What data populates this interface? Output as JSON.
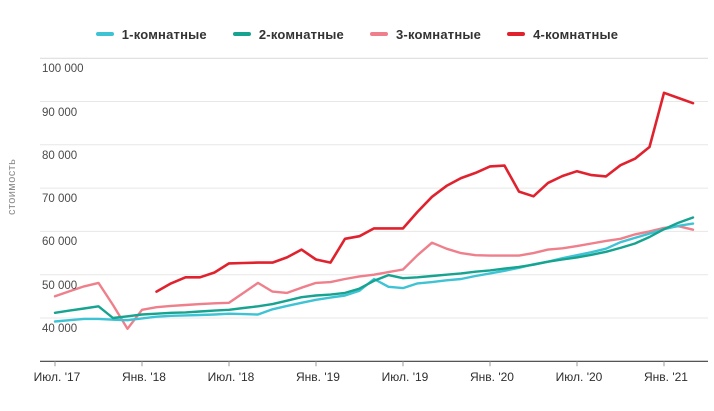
{
  "chart_data": {
    "type": "line",
    "title": "",
    "ylabel": "стоимость",
    "grid": true,
    "legend_position": "top",
    "ylim": [
      30000,
      100000
    ],
    "y_ticks": [
      {
        "label": "100 000",
        "value": 100000
      },
      {
        "label": "90 000",
        "value": 90000
      },
      {
        "label": "80 000",
        "value": 80000
      },
      {
        "label": "70 000",
        "value": 70000
      },
      {
        "label": "60 000",
        "value": 60000
      },
      {
        "label": "50 000",
        "value": 50000
      },
      {
        "label": "40 000",
        "value": 40000
      }
    ],
    "x_ticks": [
      {
        "label": "Июл. '17",
        "month_index": 0
      },
      {
        "label": "Янв. '18",
        "month_index": 6
      },
      {
        "label": "Июл. '18",
        "month_index": 12
      },
      {
        "label": "Янв. '19",
        "month_index": 18
      },
      {
        "label": "Июл. '19",
        "month_index": 24
      },
      {
        "label": "Янв. '20",
        "month_index": 30
      },
      {
        "label": "Июл. '20",
        "month_index": 36
      },
      {
        "label": "Янв. '21",
        "month_index": 42
      }
    ],
    "x": [
      "Июл. '17",
      "Авг. '17",
      "Сен. '17",
      "Окт. '17",
      "Ноя. '17",
      "Дек. '17",
      "Янв. '18",
      "Фев. '18",
      "Мар. '18",
      "Апр. '18",
      "Май '18",
      "Июн. '18",
      "Июл. '18",
      "Авг. '18",
      "Сен. '18",
      "Окт. '18",
      "Ноя. '18",
      "Дек. '18",
      "Янв. '19",
      "Фев. '19",
      "Мар. '19",
      "Апр. '19",
      "Май '19",
      "Июн. '19",
      "Июл. '19",
      "Авг. '19",
      "Сен. '19",
      "Окт. '19",
      "Ноя. '19",
      "Дек. '19",
      "Янв. '20",
      "Фев. '20",
      "Мар. '20",
      "Апр. '20",
      "Май '20",
      "Июн. '20",
      "Июл. '20",
      "Авг. '20",
      "Сен. '20",
      "Окт. '20",
      "Ноя. '20",
      "Дек. '20",
      "Янв. '21",
      "Фев. '21",
      "Мар. '21"
    ],
    "series": [
      {
        "name": "1-комнатные",
        "color": "#3ec3d5",
        "values": [
          39200,
          39500,
          39800,
          39800,
          39600,
          39500,
          39900,
          40300,
          40500,
          40600,
          40700,
          40800,
          41000,
          40900,
          40800,
          42000,
          42800,
          43500,
          44200,
          44700,
          45200,
          46300,
          49000,
          47200,
          46900,
          48000,
          48300,
          48700,
          49000,
          49700,
          50300,
          50900,
          51600,
          52400,
          53000,
          53800,
          54500,
          55200,
          56000,
          57500,
          58500,
          59500,
          60500,
          61300,
          61800
        ]
      },
      {
        "name": "2-комнатные",
        "color": "#16a38f",
        "values": [
          41200,
          41700,
          42200,
          42700,
          40000,
          40400,
          40800,
          41000,
          41200,
          41300,
          41500,
          41700,
          41900,
          42300,
          42700,
          43200,
          44000,
          44800,
          45200,
          45400,
          45800,
          46800,
          48600,
          49900,
          49200,
          49400,
          49700,
          50000,
          50300,
          50700,
          51000,
          51400,
          51800,
          52300,
          53000,
          53500,
          54000,
          54600,
          55300,
          56200,
          57200,
          58700,
          60500,
          62000,
          63200
        ]
      },
      {
        "name": "3-комнатные",
        "color": "#ee7f8b",
        "values": [
          45000,
          46200,
          47300,
          48100,
          43000,
          37500,
          41900,
          42500,
          42800,
          43000,
          43200,
          43400,
          43500,
          45800,
          48100,
          46100,
          45800,
          47000,
          48100,
          48300,
          49000,
          49600,
          50000,
          50600,
          51200,
          54500,
          57400,
          56000,
          55000,
          54500,
          54400,
          54400,
          54400,
          55000,
          55800,
          56100,
          56600,
          57200,
          57800,
          58300,
          59300,
          60000,
          60800,
          61200,
          60400
        ]
      },
      {
        "name": "4-комнатные",
        "color": "#e0222f",
        "values": [
          null,
          null,
          null,
          null,
          null,
          null,
          null,
          46100,
          48000,
          49400,
          49400,
          50500,
          52600,
          52700,
          52800,
          52800,
          54000,
          55800,
          53500,
          52800,
          58300,
          58900,
          60700,
          60700,
          60700,
          64500,
          68000,
          70500,
          72300,
          73500,
          75000,
          75200,
          69200,
          68100,
          71200,
          72800,
          73900,
          73000,
          72700,
          75300,
          76800,
          79500,
          92000,
          90800,
          89600
        ]
      }
    ]
  }
}
